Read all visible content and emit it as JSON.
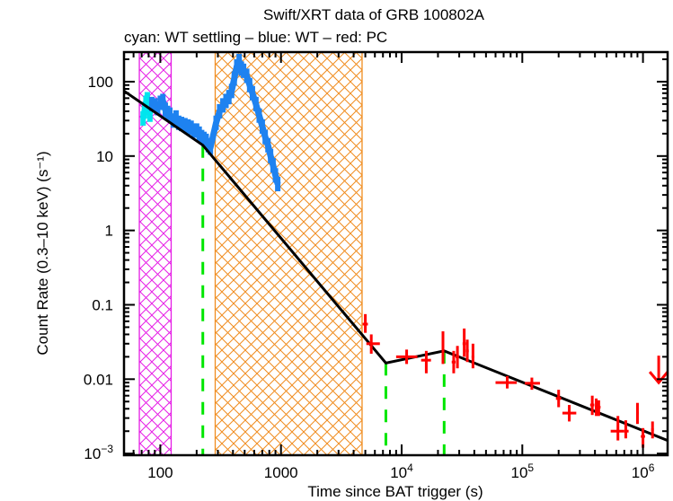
{
  "chart_data": {
    "type": "scatter",
    "title": "Swift/XRT data of GRB 100802A",
    "subtitle": "cyan: WT settling – blue: WT – red: PC",
    "xlabel": "Time since BAT trigger (s)",
    "ylabel": "Count Rate (0.3–10 keV) (s⁻¹)",
    "xscale": "log",
    "yscale": "log",
    "xlim": [
      50,
      1600000
    ],
    "ylim": [
      0.00095,
      250
    ],
    "grid": false,
    "x_ticks": [
      {
        "value": 100,
        "label": "100"
      },
      {
        "value": 1000,
        "label": "1000"
      },
      {
        "value": 10000,
        "label": "10",
        "exp": "4"
      },
      {
        "value": 100000,
        "label": "10",
        "exp": "5"
      },
      {
        "value": 1000000,
        "label": "10",
        "exp": "6"
      }
    ],
    "y_ticks": [
      {
        "value": 100,
        "label": "100"
      },
      {
        "value": 10,
        "label": "10"
      },
      {
        "value": 1,
        "label": "1"
      },
      {
        "value": 0.1,
        "label": "0.1"
      },
      {
        "value": 0.01,
        "label": "0.01"
      },
      {
        "value": 0.001,
        "label": "10",
        "exp": "−3"
      }
    ],
    "colors": {
      "wt_settling": "#00e5ee",
      "wt": "#1e82f0",
      "pc": "#ff0000",
      "model": "#000000",
      "breaks": "#00e600",
      "hatch_magenta": "#e61ee6",
      "hatch_orange": "#f08c1e"
    },
    "excluded_regions": [
      {
        "name": "magenta",
        "x_start": 67,
        "x_end": 123
      },
      {
        "name": "orange",
        "x_start": 285,
        "x_end": 4700
      }
    ],
    "breaks": [
      225,
      7400,
      22500
    ],
    "model": {
      "name": "broken power law fit",
      "points": [
        [
          50,
          75
        ],
        [
          225,
          14
        ],
        [
          7400,
          0.0165
        ],
        [
          22500,
          0.024
        ],
        [
          1600000,
          0.0015
        ]
      ]
    },
    "series": [
      {
        "name": "WT settling",
        "color": "#00e5ee",
        "points": [
          [
            72,
            32
          ],
          [
            74,
            40
          ],
          [
            76,
            52
          ],
          [
            78,
            58
          ],
          [
            80,
            45
          ],
          [
            82,
            36
          ]
        ]
      },
      {
        "name": "WT",
        "color": "#1e82f0",
        "points": [
          [
            85,
            50
          ],
          [
            90,
            48
          ],
          [
            95,
            44
          ],
          [
            100,
            52
          ],
          [
            105,
            55
          ],
          [
            110,
            42
          ],
          [
            115,
            38
          ],
          [
            120,
            36
          ],
          [
            128,
            30
          ],
          [
            135,
            33
          ],
          [
            142,
            28
          ],
          [
            150,
            27
          ],
          [
            160,
            26
          ],
          [
            170,
            25
          ],
          [
            180,
            24
          ],
          [
            190,
            22
          ],
          [
            200,
            22
          ],
          [
            210,
            20
          ],
          [
            220,
            18
          ],
          [
            230,
            17
          ],
          [
            240,
            16
          ],
          [
            250,
            14
          ],
          [
            260,
            13
          ],
          [
            290,
            28
          ],
          [
            310,
            40
          ],
          [
            330,
            48
          ],
          [
            350,
            55
          ],
          [
            370,
            62
          ],
          [
            390,
            75
          ],
          [
            410,
            110
          ],
          [
            430,
            160
          ],
          [
            450,
            190
          ],
          [
            470,
            150
          ],
          [
            490,
            140
          ],
          [
            520,
            120
          ],
          [
            550,
            90
          ],
          [
            580,
            70
          ],
          [
            620,
            50
          ],
          [
            660,
            35
          ],
          [
            700,
            25
          ],
          [
            740,
            18
          ],
          [
            780,
            14
          ],
          [
            820,
            10
          ],
          [
            860,
            7.5
          ],
          [
            900,
            5.5
          ],
          [
            940,
            4.2
          ]
        ]
      },
      {
        "name": "PC",
        "color": "#ff0000",
        "points": [
          {
            "x": 5000,
            "y": 0.055,
            "xerr": [
              4750,
              5250
            ],
            "yerr": [
              0.042,
              0.075
            ]
          },
          {
            "x": 5600,
            "y": 0.03,
            "xerr": [
              5100,
              6600
            ],
            "yerr": [
              0.022,
              0.04
            ]
          },
          {
            "x": 11000,
            "y": 0.02,
            "xerr": [
              9000,
              13500
            ],
            "yerr": [
              0.016,
              0.025
            ]
          },
          {
            "x": 16000,
            "y": 0.018,
            "xerr": [
              14500,
              17500
            ],
            "yerr": [
              0.012,
              0.024
            ]
          },
          {
            "x": 22000,
            "y": 0.026,
            "xerr": [
              21500,
              22500
            ],
            "yerr": [
              0.016,
              0.044
            ]
          },
          {
            "x": 27000,
            "y": 0.017,
            "xerr": [
              26000,
              28000
            ],
            "yerr": [
              0.012,
              0.024
            ]
          },
          {
            "x": 29000,
            "y": 0.02,
            "xerr": [
              28000,
              30000
            ],
            "yerr": [
              0.014,
              0.028
            ]
          },
          {
            "x": 33000,
            "y": 0.03,
            "xerr": [
              32000,
              34000
            ],
            "yerr": [
              0.02,
              0.048
            ]
          },
          {
            "x": 35000,
            "y": 0.024,
            "xerr": [
              34000,
              36000
            ],
            "yerr": [
              0.017,
              0.034
            ]
          },
          {
            "x": 39000,
            "y": 0.02,
            "xerr": [
              38000,
              40000
            ],
            "yerr": [
              0.014,
              0.03
            ]
          },
          {
            "x": 75000,
            "y": 0.009,
            "xerr": [
              60000,
              90000
            ],
            "yerr": [
              0.0075,
              0.011
            ]
          },
          {
            "x": 120000,
            "y": 0.0088,
            "xerr": [
              105000,
              140000
            ],
            "yerr": [
              0.0072,
              0.0105
            ]
          },
          {
            "x": 200000,
            "y": 0.0055,
            "xerr": [
              190000,
              210000
            ],
            "yerr": [
              0.0042,
              0.0072
            ]
          },
          {
            "x": 245000,
            "y": 0.0035,
            "xerr": [
              215000,
              280000
            ],
            "yerr": [
              0.0027,
              0.0045
            ]
          },
          {
            "x": 380000,
            "y": 0.0045,
            "xerr": [
              365000,
              395000
            ],
            "yerr": [
              0.0033,
              0.006
            ]
          },
          {
            "x": 410000,
            "y": 0.0042,
            "xerr": [
              400000,
              420000
            ],
            "yerr": [
              0.0032,
              0.0055
            ]
          },
          {
            "x": 430000,
            "y": 0.0042,
            "xerr": [
              420000,
              445000
            ],
            "yerr": [
              0.0032,
              0.0052
            ]
          },
          {
            "x": 620000,
            "y": 0.002,
            "xerr": [
              540000,
              700000
            ],
            "yerr": [
              0.0015,
              0.0032
            ]
          },
          {
            "x": 720000,
            "y": 0.002,
            "xerr": [
              700000,
              760000
            ],
            "yerr": [
              0.0016,
              0.0028
            ]
          },
          {
            "x": 900000,
            "y": 0.0035,
            "xerr": [
              880000,
              920000
            ],
            "yerr": [
              0.0025,
              0.0048
            ]
          },
          {
            "x": 1000000,
            "y": 0.0017,
            "xerr": [
              960000,
              1040000
            ],
            "yerr": [
              0.0012,
              0.0022
            ]
          },
          {
            "x": 1200000,
            "y": 0.0021,
            "xerr": [
              1170000,
              1230000
            ],
            "yerr": [
              0.0016,
              0.0027
            ]
          }
        ]
      }
    ],
    "upper_limits": [
      {
        "series": "PC",
        "x": 1350000,
        "y": 0.009,
        "color": "#ff0000"
      }
    ]
  }
}
